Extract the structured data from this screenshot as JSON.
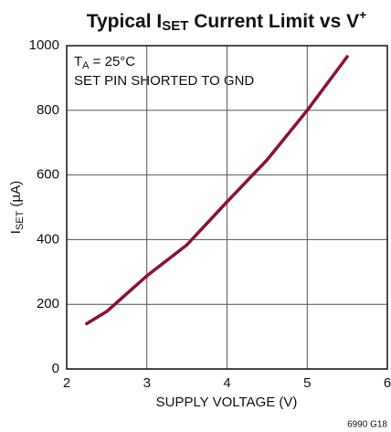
{
  "chart_data": {
    "type": "line",
    "title": [
      "Typical I",
      "SET",
      " Current Limit vs V",
      "+"
    ],
    "xlabel": "SUPPLY VOLTAGE (V)",
    "ylabel": [
      "I",
      "SET",
      " (µA)"
    ],
    "annotations": [
      [
        "T",
        "A",
        " = 25°C"
      ],
      "SET PIN SHORTED TO GND"
    ],
    "footnote": "6990 G18",
    "x": [
      2.25,
      2.5,
      3,
      3.5,
      4,
      4.5,
      5,
      5.5
    ],
    "series": [
      {
        "name": "ISET",
        "color": "#8c0f33",
        "values": [
          140,
          178,
          288,
          384,
          517,
          647,
          800,
          966
        ]
      }
    ],
    "xlim": [
      2,
      6
    ],
    "xticks": [
      2,
      3,
      4,
      5,
      6
    ],
    "ylim": [
      0,
      1000
    ],
    "yticks": [
      0,
      200,
      400,
      600,
      800,
      1000
    ],
    "grid": true
  }
}
